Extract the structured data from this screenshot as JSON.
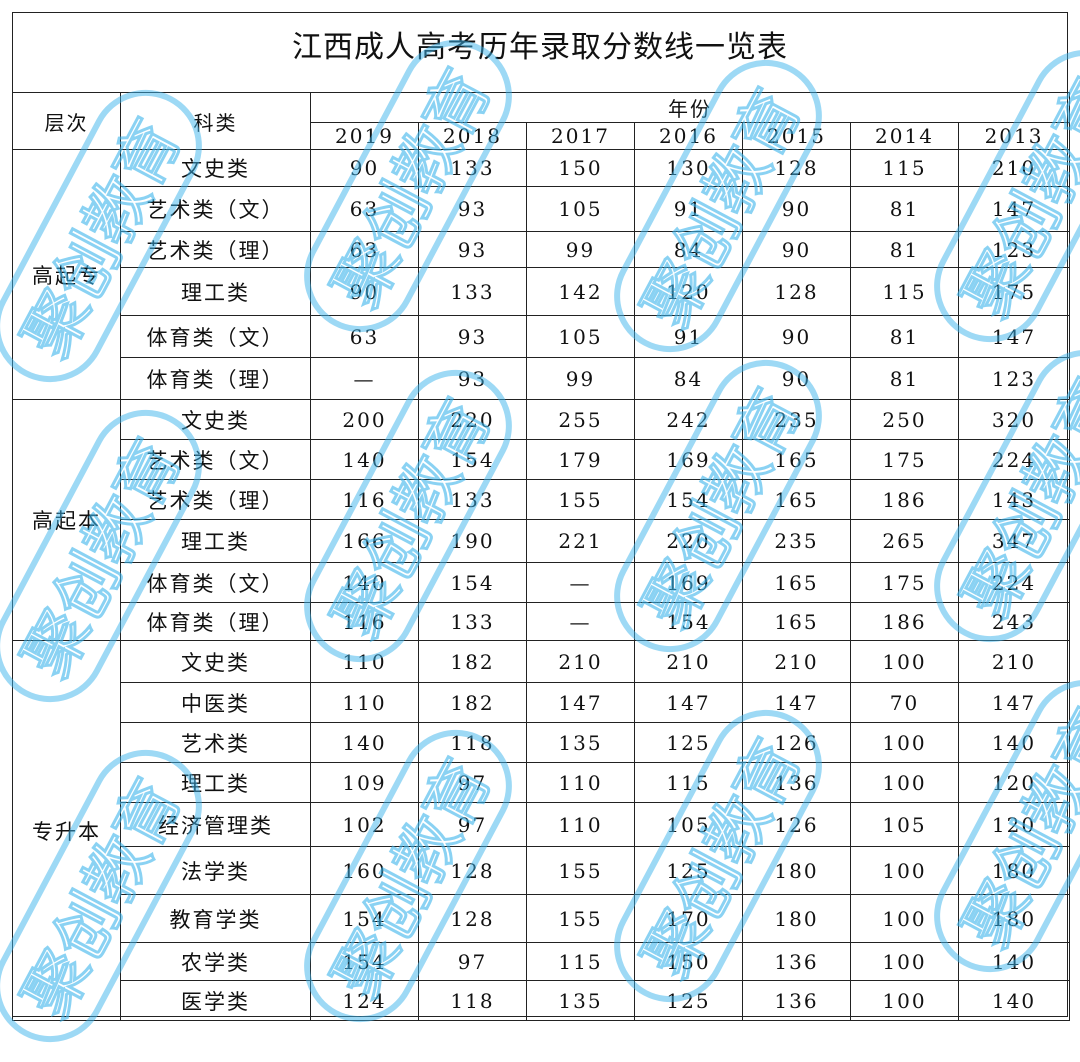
{
  "title": "江西成人高考历年录取分数线一览表",
  "headers": {
    "level": "层次",
    "category": "科类",
    "year_group": "年份",
    "years": [
      "2019",
      "2018",
      "2017",
      "2016",
      "2015",
      "2014",
      "2013"
    ]
  },
  "groups": [
    {
      "level": "高起专",
      "rows": [
        {
          "category": "文史类",
          "values": [
            "90",
            "133",
            "150",
            "130",
            "128",
            "115",
            "210"
          ]
        },
        {
          "category": "艺术类（文）",
          "values": [
            "63",
            "93",
            "105",
            "91",
            "90",
            "81",
            "147"
          ]
        },
        {
          "category": "艺术类（理）",
          "values": [
            "63",
            "93",
            "99",
            "84",
            "90",
            "81",
            "123"
          ]
        },
        {
          "category": "理工类",
          "values": [
            "90",
            "133",
            "142",
            "120",
            "128",
            "115",
            "175"
          ]
        },
        {
          "category": "体育类（文）",
          "values": [
            "63",
            "93",
            "105",
            "91",
            "90",
            "81",
            "147"
          ]
        },
        {
          "category": "体育类（理）",
          "values": [
            "—",
            "93",
            "99",
            "84",
            "90",
            "81",
            "123"
          ]
        }
      ]
    },
    {
      "level": "高起本",
      "rows": [
        {
          "category": "文史类",
          "values": [
            "200",
            "220",
            "255",
            "242",
            "235",
            "250",
            "320"
          ]
        },
        {
          "category": "艺术类（文）",
          "values": [
            "140",
            "154",
            "179",
            "169",
            "165",
            "175",
            "224"
          ]
        },
        {
          "category": "艺术类（理）",
          "values": [
            "116",
            "133",
            "155",
            "154",
            "165",
            "186",
            "143"
          ]
        },
        {
          "category": "理工类",
          "values": [
            "166",
            "190",
            "221",
            "220",
            "235",
            "265",
            "347"
          ]
        },
        {
          "category": "体育类（文）",
          "values": [
            "140",
            "154",
            "—",
            "169",
            "165",
            "175",
            "224"
          ]
        },
        {
          "category": "体育类（理）",
          "values": [
            "116",
            "133",
            "—",
            "154",
            "165",
            "186",
            "243"
          ]
        }
      ]
    },
    {
      "level": "专升本",
      "rows": [
        {
          "category": "文史类",
          "values": [
            "110",
            "182",
            "210",
            "210",
            "210",
            "100",
            "210"
          ]
        },
        {
          "category": "中医类",
          "values": [
            "110",
            "182",
            "147",
            "147",
            "147",
            "70",
            "147"
          ]
        },
        {
          "category": "艺术类",
          "values": [
            "140",
            "118",
            "135",
            "125",
            "126",
            "100",
            "140"
          ]
        },
        {
          "category": "理工类",
          "values": [
            "109",
            "97",
            "110",
            "115",
            "136",
            "100",
            "120"
          ]
        },
        {
          "category": "经济管理类",
          "values": [
            "102",
            "97",
            "110",
            "105",
            "126",
            "105",
            "120"
          ]
        },
        {
          "category": "法学类",
          "values": [
            "160",
            "128",
            "155",
            "125",
            "180",
            "100",
            "180"
          ]
        },
        {
          "category": "教育学类",
          "values": [
            "154",
            "128",
            "155",
            "170",
            "180",
            "100",
            "180"
          ]
        },
        {
          "category": "农学类",
          "values": [
            "154",
            "97",
            "115",
            "150",
            "136",
            "100",
            "140"
          ]
        },
        {
          "category": "医学类",
          "values": [
            "124",
            "118",
            "135",
            "125",
            "136",
            "100",
            "140"
          ]
        }
      ]
    }
  ],
  "watermark": "聚创教育",
  "watermark_color": "#3cb4eb"
}
